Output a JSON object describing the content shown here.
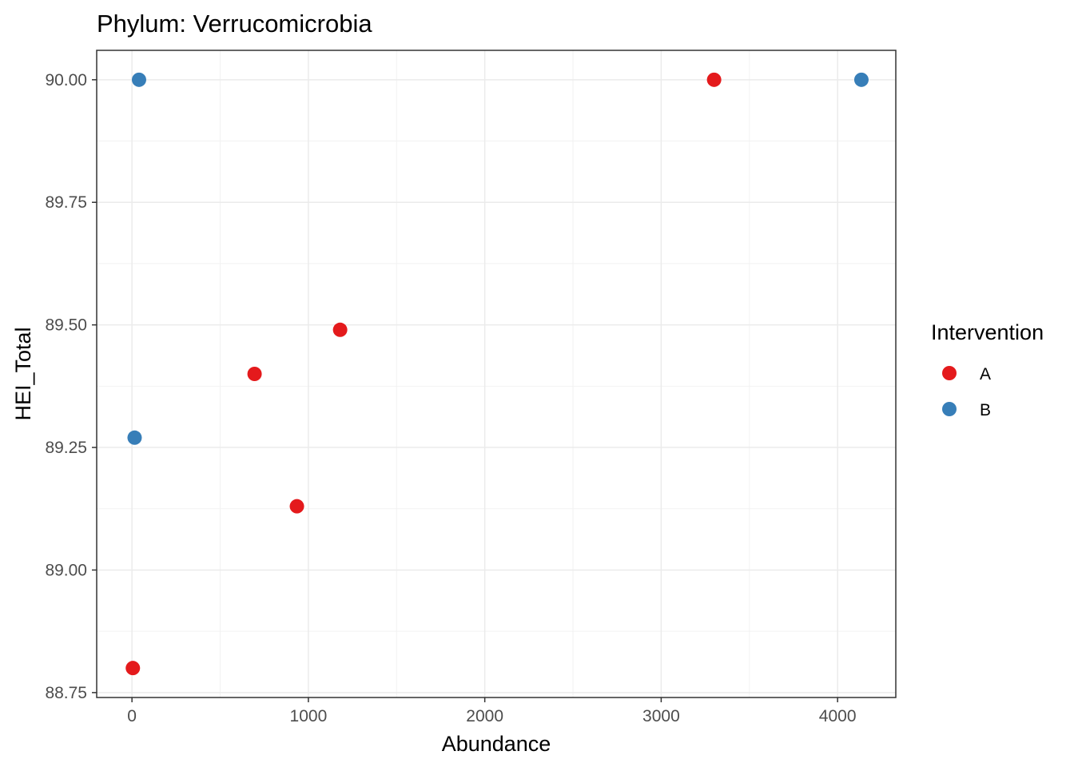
{
  "chart_data": {
    "type": "scatter",
    "title": "Phylum: Verrucomicrobia",
    "xlabel": "Abundance",
    "ylabel": "HEI_Total",
    "xlim": [
      -200,
      4330
    ],
    "ylim": [
      88.74,
      90.06
    ],
    "x_ticks": [
      0,
      1000,
      2000,
      3000,
      4000
    ],
    "x_tick_labels": [
      "0",
      "1000",
      "2000",
      "3000",
      "4000"
    ],
    "y_ticks": [
      88.75,
      89.0,
      89.25,
      89.5,
      89.75,
      90.0
    ],
    "y_tick_labels": [
      "88.75",
      "89.00",
      "89.25",
      "89.50",
      "89.75",
      "90.00"
    ],
    "grid": true,
    "legend": {
      "title": "Intervention",
      "placement": "right",
      "entries": [
        "A",
        "B"
      ]
    },
    "series": [
      {
        "name": "A",
        "color": "#e41a1c",
        "points": [
          {
            "x": 5,
            "y": 88.8
          },
          {
            "x": 695,
            "y": 89.4
          },
          {
            "x": 935,
            "y": 89.13
          },
          {
            "x": 1180,
            "y": 89.49
          },
          {
            "x": 3300,
            "y": 90.0
          }
        ]
      },
      {
        "name": "B",
        "color": "#377eb8",
        "points": [
          {
            "x": 40,
            "y": 90.0
          },
          {
            "x": 15,
            "y": 89.27
          },
          {
            "x": 4135,
            "y": 90.0
          }
        ]
      }
    ]
  }
}
